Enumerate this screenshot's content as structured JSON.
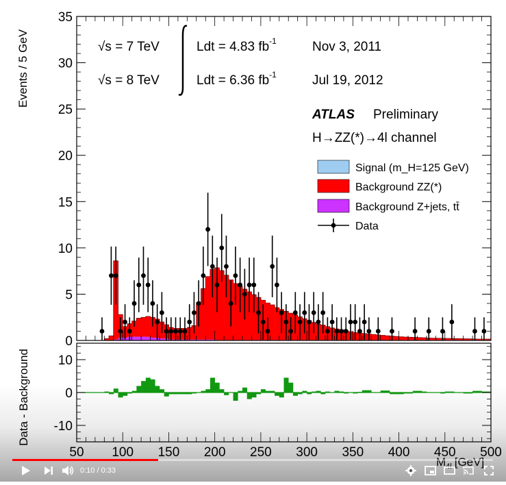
{
  "player": {
    "time_current": "0:10",
    "time_separator": "/",
    "time_total": "0:33",
    "progress_fraction": 0.303
  },
  "chart_data": [
    {
      "type": "bar",
      "panel": "main",
      "ylabel": "Events / 5 GeV",
      "xlabel": "M",
      "xlabel_sub": "4l",
      "xlabel_unit": "[GeV]",
      "xlim": [
        50,
        500
      ],
      "ylim": [
        0,
        35
      ],
      "yticks": [
        "0",
        "5",
        "10",
        "15",
        "20",
        "25",
        "30",
        "35"
      ],
      "annotations": {
        "sqrt_s_7": "√s = 7 TeV",
        "lumi_7": "Ldt = 4.83 fb",
        "lumi_sup": "-1",
        "date_7": "Nov  3, 2011",
        "sqrt_s_8": "√s = 8 TeV",
        "lumi_8": "Ldt = 6.36 fb",
        "date_8": "Jul 19, 2012",
        "experiment": "ATLAS",
        "status": "Preliminary",
        "channel": "H→ZZ(*)→4l channel"
      },
      "legend_placement": "right",
      "legend": [
        {
          "label": "Signal (m_H=125 GeV)",
          "color": "#9fcdf2"
        },
        {
          "label": "Background ZZ(*)",
          "color": "#ff0000"
        },
        {
          "label": "Background Z+jets, tt̄",
          "color": "#cc33ff"
        },
        {
          "label": "Data",
          "color": "#000000"
        }
      ],
      "bin_width": 5,
      "bins": [
        80,
        85,
        90,
        95,
        100,
        105,
        110,
        115,
        120,
        125,
        130,
        135,
        140,
        145,
        150,
        155,
        160,
        165,
        170,
        175,
        180,
        185,
        190,
        195,
        200,
        205,
        210,
        215,
        220,
        225,
        230,
        235,
        240,
        245,
        250,
        255,
        260,
        265,
        270,
        275,
        280,
        285,
        290,
        295,
        300,
        305,
        310,
        315,
        320,
        325,
        330,
        335,
        340,
        345,
        350,
        355,
        360,
        365,
        370,
        375,
        380,
        385,
        390,
        395,
        400,
        405,
        410,
        415,
        420,
        425,
        430,
        435,
        440,
        445,
        450,
        455,
        460,
        465,
        470,
        475,
        480,
        485,
        490,
        495
      ],
      "background_zz": [
        0.2,
        0.5,
        8.5,
        2.5,
        1.2,
        1.4,
        1.7,
        2.0,
        2.1,
        2.2,
        2.2,
        2.0,
        1.8,
        1.5,
        1.3,
        1.2,
        1.2,
        1.2,
        1.3,
        1.5,
        4.0,
        5.5,
        6.8,
        7.6,
        7.8,
        7.5,
        7.0,
        6.5,
        6.1,
        5.8,
        5.5,
        5.2,
        4.9,
        4.6,
        4.3,
        4.0,
        3.8,
        3.5,
        3.3,
        3.1,
        2.9,
        2.7,
        2.5,
        2.3,
        2.1,
        1.9,
        1.7,
        1.6,
        1.45,
        1.3,
        1.2,
        1.1,
        1.0,
        0.9,
        0.8,
        0.75,
        0.7,
        0.65,
        0.6,
        0.55,
        0.5,
        0.46,
        0.42,
        0.38,
        0.35,
        0.32,
        0.3,
        0.28,
        0.26,
        0.24,
        0.22,
        0.2,
        0.19,
        0.18,
        0.17,
        0.16,
        0.15,
        0.14,
        0.13,
        0.12,
        0.11,
        0.1,
        0.1,
        0.1
      ],
      "background_zjets": [
        0.0,
        0.0,
        0.1,
        0.3,
        0.3,
        0.4,
        0.4,
        0.4,
        0.4,
        0.4,
        0.3,
        0.3,
        0.2,
        0.2,
        0.1,
        0.1,
        0.1,
        0.1,
        0.1,
        0.1,
        0.1,
        0.1,
        0.1,
        0.1,
        0.05,
        0.05,
        0.05,
        0.05,
        0.05,
        0.05,
        0.05,
        0.05,
        0.05,
        0.05,
        0.05,
        0.05,
        0.05,
        0.05,
        0.05,
        0.05,
        0.05,
        0.05,
        0.05,
        0.05,
        0.05,
        0.05,
        0.05,
        0.05,
        0.05,
        0.05,
        0.05,
        0.05,
        0.05,
        0.05,
        0.05,
        0.05,
        0.05,
        0.05,
        0.05,
        0.05,
        0.05,
        0.05,
        0.05,
        0.05,
        0.05,
        0.05,
        0.05,
        0.05,
        0.05,
        0.05,
        0.05,
        0.05,
        0.05,
        0.05,
        0.05,
        0.05,
        0.05,
        0.05,
        0.05,
        0.05,
        0.05,
        0.05,
        0.05,
        0.05
      ],
      "data": [
        {
          "x": 77.5,
          "y": 1
        },
        {
          "x": 87.5,
          "y": 7
        },
        {
          "x": 92.5,
          "y": 7
        },
        {
          "x": 97.5,
          "y": 1
        },
        {
          "x": 102.5,
          "y": 2
        },
        {
          "x": 107.5,
          "y": 1
        },
        {
          "x": 112.5,
          "y": 4
        },
        {
          "x": 117.5,
          "y": 6
        },
        {
          "x": 122.5,
          "y": 7
        },
        {
          "x": 127.5,
          "y": 6
        },
        {
          "x": 132.5,
          "y": 4
        },
        {
          "x": 137.5,
          "y": 2
        },
        {
          "x": 142.5,
          "y": 3
        },
        {
          "x": 147.5,
          "y": 1
        },
        {
          "x": 152.5,
          "y": 1
        },
        {
          "x": 157.5,
          "y": 1
        },
        {
          "x": 162.5,
          "y": 1
        },
        {
          "x": 167.5,
          "y": 1
        },
        {
          "x": 172.5,
          "y": 2
        },
        {
          "x": 177.5,
          "y": 3
        },
        {
          "x": 182.5,
          "y": 4
        },
        {
          "x": 187.5,
          "y": 7
        },
        {
          "x": 192.5,
          "y": 12
        },
        {
          "x": 197.5,
          "y": 8
        },
        {
          "x": 202.5,
          "y": 6
        },
        {
          "x": 207.5,
          "y": 10
        },
        {
          "x": 212.5,
          "y": 8
        },
        {
          "x": 217.5,
          "y": 4
        },
        {
          "x": 222.5,
          "y": 7
        },
        {
          "x": 227.5,
          "y": 6
        },
        {
          "x": 232.5,
          "y": 5
        },
        {
          "x": 237.5,
          "y": 6
        },
        {
          "x": 242.5,
          "y": 6
        },
        {
          "x": 247.5,
          "y": 3
        },
        {
          "x": 252.5,
          "y": 2
        },
        {
          "x": 257.5,
          "y": 1
        },
        {
          "x": 262.5,
          "y": 8
        },
        {
          "x": 267.5,
          "y": 6
        },
        {
          "x": 272.5,
          "y": 3
        },
        {
          "x": 277.5,
          "y": 2
        },
        {
          "x": 282.5,
          "y": 1
        },
        {
          "x": 287.5,
          "y": 3
        },
        {
          "x": 292.5,
          "y": 2
        },
        {
          "x": 297.5,
          "y": 3
        },
        {
          "x": 302.5,
          "y": 2
        },
        {
          "x": 307.5,
          "y": 3
        },
        {
          "x": 312.5,
          "y": 2
        },
        {
          "x": 317.5,
          "y": 3
        },
        {
          "x": 322.5,
          "y": 1
        },
        {
          "x": 327.5,
          "y": 2
        },
        {
          "x": 332.5,
          "y": 1
        },
        {
          "x": 337.5,
          "y": 1
        },
        {
          "x": 342.5,
          "y": 1
        },
        {
          "x": 347.5,
          "y": 2
        },
        {
          "x": 352.5,
          "y": 2
        },
        {
          "x": 357.5,
          "y": 1
        },
        {
          "x": 362.5,
          "y": 2
        },
        {
          "x": 367.5,
          "y": 1
        },
        {
          "x": 377.5,
          "y": 1
        },
        {
          "x": 392.5,
          "y": 1
        },
        {
          "x": 417.5,
          "y": 1
        },
        {
          "x": 432.5,
          "y": 1
        },
        {
          "x": 447.5,
          "y": 1
        },
        {
          "x": 457.5,
          "y": 2
        },
        {
          "x": 482.5,
          "y": 1
        },
        {
          "x": 492.5,
          "y": 1
        }
      ]
    },
    {
      "type": "bar",
      "panel": "ratio",
      "ylabel": "Data - Background",
      "xlabel": "M",
      "xlabel_sub": "4l",
      "xlabel_unit": "[GeV]",
      "xlim": [
        50,
        500
      ],
      "ylim": [
        -15,
        15
      ],
      "yticks": [
        "-10",
        "0",
        "10"
      ],
      "xticks": [
        "50",
        "100",
        "150",
        "200",
        "250",
        "300",
        "350",
        "400",
        "450",
        "500"
      ],
      "color": "#119911",
      "bin_width": 5,
      "bins": [
        75,
        80,
        85,
        90,
        95,
        100,
        105,
        110,
        115,
        120,
        125,
        130,
        135,
        140,
        145,
        150,
        155,
        160,
        165,
        170,
        175,
        180,
        185,
        190,
        195,
        200,
        205,
        210,
        215,
        220,
        225,
        230,
        235,
        240,
        245,
        250,
        255,
        260,
        265,
        270,
        275,
        280,
        285,
        290,
        295,
        300,
        305,
        310,
        315,
        320,
        325,
        330,
        335,
        340,
        345,
        350,
        355,
        360,
        365,
        370,
        375,
        380,
        385,
        390,
        395,
        400,
        405,
        410,
        415,
        420,
        425,
        430,
        435,
        440,
        445,
        450,
        455,
        460,
        465,
        470,
        475,
        480,
        485,
        490,
        495
      ],
      "values": [
        0,
        0.3,
        -0.5,
        1.2,
        -1.5,
        -1.0,
        -0.3,
        0.5,
        2.0,
        3.5,
        4.5,
        4.0,
        2.0,
        1.0,
        -1.2,
        -0.5,
        -0.5,
        -0.5,
        -0.5,
        -0.5,
        -0.3,
        0,
        0.5,
        1.0,
        4.5,
        3.0,
        1.0,
        -0.8,
        0,
        -2.5,
        0.5,
        1.5,
        -2.0,
        -1.5,
        -0.5,
        1.0,
        0.5,
        0.5,
        -1.0,
        -1.5,
        4.5,
        3.0,
        -1.0,
        -0.5,
        0.5,
        -0.5,
        0.3,
        0.5,
        -0.5,
        0.3,
        0,
        0.5,
        0.3,
        -0.3,
        0,
        -0.3,
        0.2,
        0.7,
        0.7,
        0,
        0,
        0.6,
        0.6,
        -0.5,
        -0.5,
        -0.5,
        -0.3,
        -0.3,
        0.5,
        0.5,
        0.3,
        0,
        0,
        0,
        -0.3,
        0.3,
        0.3,
        0,
        0,
        -0.3,
        -0.3,
        0.5,
        0.5,
        0.3,
        0.3
      ]
    }
  ]
}
